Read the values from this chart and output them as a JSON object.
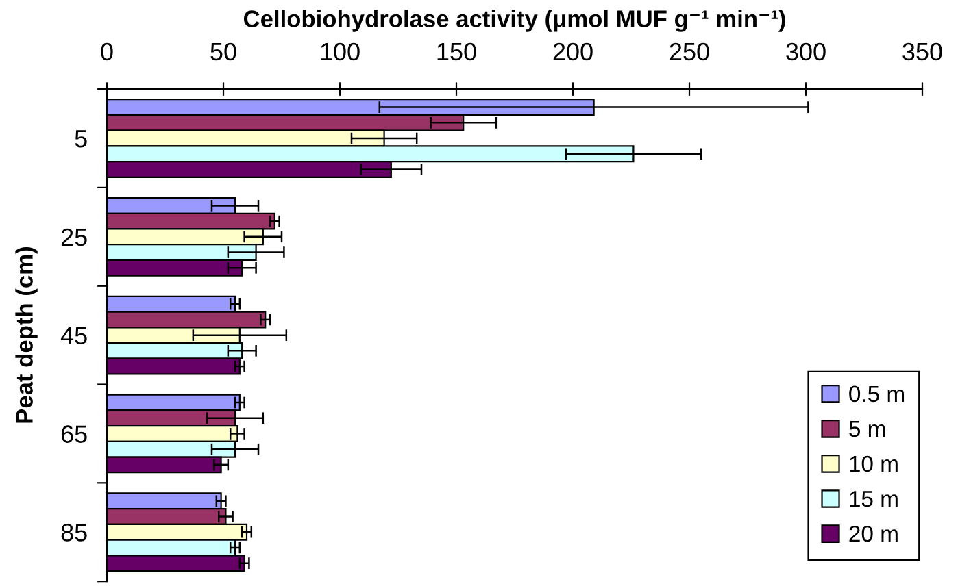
{
  "chart_data": {
    "type": "bar",
    "orientation": "horizontal",
    "xlabel": "Cellobiohydrolase activity (μmol MUF g⁻¹ min⁻¹)",
    "ylabel": "Peat depth (cm)",
    "categories": [
      "5",
      "25",
      "45",
      "65",
      "85"
    ],
    "xlim": [
      0,
      350
    ],
    "xticks": [
      0,
      50,
      100,
      150,
      200,
      250,
      300,
      350
    ],
    "legend": "bottom right",
    "series": [
      {
        "name": "0.5 m",
        "color": "#9999ff",
        "values": [
          209,
          55,
          55,
          57,
          49
        ],
        "errors": [
          92,
          10,
          2,
          2,
          2
        ]
      },
      {
        "name": "5 m",
        "color": "#993366",
        "values": [
          153,
          72,
          68,
          55,
          51
        ],
        "errors": [
          14,
          2,
          2,
          12,
          3
        ]
      },
      {
        "name": "10 m",
        "color": "#ffffcc",
        "values": [
          119,
          67,
          57,
          56,
          60
        ],
        "errors": [
          14,
          8,
          20,
          3,
          2
        ]
      },
      {
        "name": "15 m",
        "color": "#ccffff",
        "values": [
          226,
          64,
          58,
          55,
          55
        ],
        "errors": [
          29,
          12,
          6,
          10,
          2
        ]
      },
      {
        "name": "20 m",
        "color": "#660066",
        "values": [
          122,
          58,
          57,
          49,
          59
        ],
        "errors": [
          13,
          6,
          2,
          3,
          2
        ]
      }
    ]
  }
}
